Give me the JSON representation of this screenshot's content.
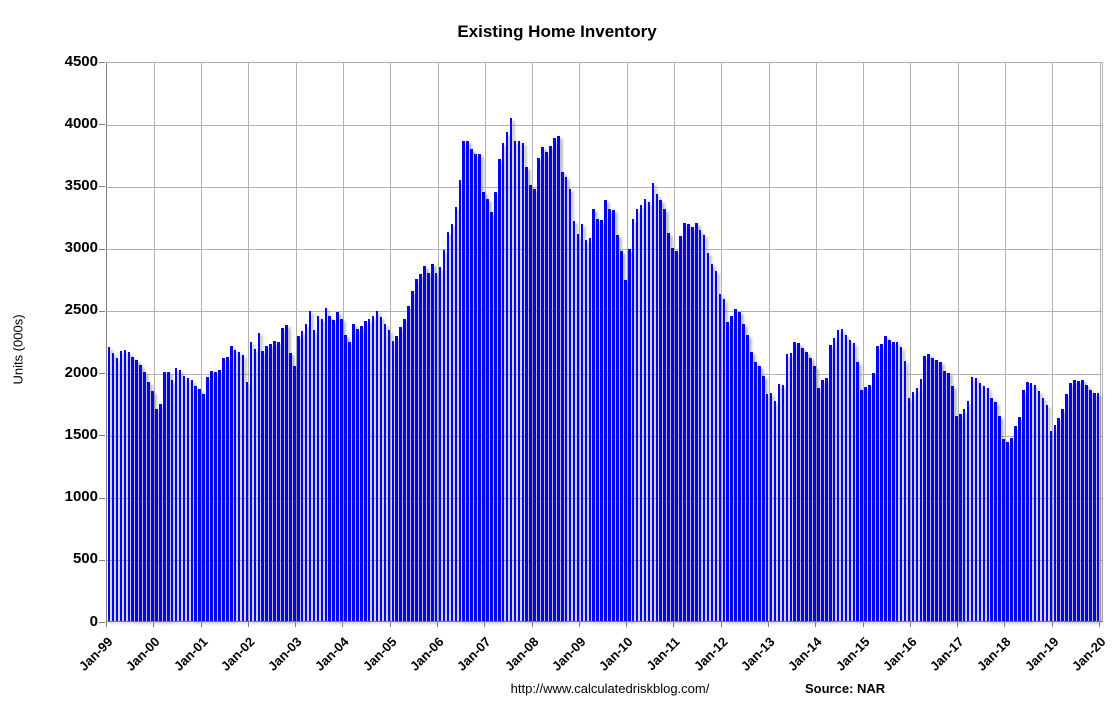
{
  "title": "Existing Home Inventory",
  "y_axis_title": "Units (000s)",
  "footer": {
    "url": "http://www.calculatedriskblog.com/",
    "source_label": "Source:",
    "source_value": "NAR"
  },
  "colors": {
    "bar": "#0404ee",
    "gridline": "#b2b2b2",
    "axis": "#7f7f7f",
    "background": "#ffffff",
    "text": "#000000"
  },
  "chart_data": {
    "type": "bar",
    "title": "Existing Home Inventory",
    "ylabel": "Units (000s)",
    "xlabel": "",
    "ylim": [
      0,
      4500
    ],
    "ytick_interval": 500,
    "yticks": [
      0,
      500,
      1000,
      1500,
      2000,
      2500,
      3000,
      3500,
      4000,
      4500
    ],
    "xticks": [
      "Jan-99",
      "Jan-00",
      "Jan-01",
      "Jan-02",
      "Jan-03",
      "Jan-04",
      "Jan-05",
      "Jan-06",
      "Jan-07",
      "Jan-08",
      "Jan-09",
      "Jan-10",
      "Jan-11",
      "Jan-12",
      "Jan-13",
      "Jan-14",
      "Jan-15",
      "Jan-16",
      "Jan-17",
      "Jan-18",
      "Jan-19",
      "Jan-20"
    ],
    "grid": true,
    "legend": false,
    "x_frequency": "monthly",
    "x_start": "Jan-1999",
    "x_end": "Dec-2019",
    "units": "thousands of units",
    "years": [
      "1999",
      "2000",
      "2001",
      "2002",
      "2003",
      "2004",
      "2005",
      "2006",
      "2007",
      "2008",
      "2009",
      "2010",
      "2011",
      "2012",
      "2013",
      "2014",
      "2015",
      "2016",
      "2017",
      "2018",
      "2019"
    ],
    "values_by_year": {
      "1999": [
        2205,
        2150,
        2115,
        2170,
        2175,
        2160,
        2120,
        2095,
        2060,
        2000,
        1920,
        1852
      ],
      "2000": [
        1705,
        1745,
        2000,
        2005,
        1937,
        2030,
        2018,
        1972,
        1951,
        1940,
        1892,
        1865
      ],
      "2001": [
        1825,
        1958,
        2012,
        2000,
        2020,
        2110,
        2120,
        2213,
        2181,
        2165,
        2140,
        1919
      ],
      "2002": [
        2244,
        2187,
        2312,
        2173,
        2213,
        2227,
        2253,
        2240,
        2352,
        2375,
        2150,
        2050
      ],
      "2003": [
        2290,
        2333,
        2390,
        2495,
        2340,
        2450,
        2425,
        2515,
        2450,
        2415,
        2480,
        2430
      ],
      "2004": [
        2300,
        2245,
        2390,
        2350,
        2370,
        2410,
        2425,
        2450,
        2490,
        2440,
        2390,
        2340
      ],
      "2005": [
        2250,
        2290,
        2360,
        2430,
        2530,
        2650,
        2750,
        2790,
        2850,
        2800,
        2870,
        2800
      ],
      "2006": [
        2845,
        2985,
        3126,
        3191,
        3325,
        3542,
        3856,
        3855,
        3794,
        3752,
        3749,
        3450
      ],
      "2007": [
        3390,
        3290,
        3450,
        3710,
        3845,
        3930,
        4040,
        3855,
        3855,
        3845,
        3650,
        3505
      ],
      "2008": [
        3475,
        3720,
        3810,
        3770,
        3820,
        3880,
        3900,
        3605,
        3565,
        3470,
        3215,
        3110
      ],
      "2009": [
        3190,
        3060,
        3080,
        3310,
        3230,
        3220,
        3380,
        3310,
        3300,
        3100,
        2970,
        2740
      ],
      "2010": [
        2990,
        3230,
        3310,
        3340,
        3390,
        3370,
        3520,
        3430,
        3380,
        3310,
        3120,
        3000
      ],
      "2011": [
        2970,
        3090,
        3200,
        3190,
        3170,
        3200,
        3140,
        3100,
        2960,
        2870,
        2810,
        2630
      ],
      "2012": [
        2590,
        2400,
        2450,
        2510,
        2480,
        2390,
        2295,
        2160,
        2080,
        2050,
        1970,
        1825
      ],
      "2013": [
        1833,
        1770,
        1905,
        1895,
        2145,
        2150,
        2240,
        2235,
        2190,
        2165,
        2110,
        2050
      ],
      "2014": [
        1870,
        1940,
        1955,
        2220,
        2275,
        2340,
        2350,
        2300,
        2260,
        2235,
        2085,
        1855
      ],
      "2015": [
        1880,
        1900,
        1990,
        2210,
        2225,
        2290,
        2255,
        2245,
        2240,
        2200,
        2090,
        1790
      ],
      "2016": [
        1840,
        1870,
        1945,
        2130,
        2145,
        2110,
        2100,
        2085,
        2010,
        1990,
        1890,
        1650
      ],
      "2017": [
        1665,
        1705,
        1770,
        1960,
        1950,
        1915,
        1885,
        1870,
        1795,
        1760,
        1645,
        1465
      ],
      "2018": [
        1435,
        1470,
        1570,
        1640,
        1855,
        1920,
        1910,
        1900,
        1850,
        1795,
        1735,
        1530
      ],
      "2019": [
        1575,
        1635,
        1700,
        1825,
        1910,
        1940,
        1930,
        1940,
        1895,
        1855,
        1835,
        1830
      ]
    }
  }
}
